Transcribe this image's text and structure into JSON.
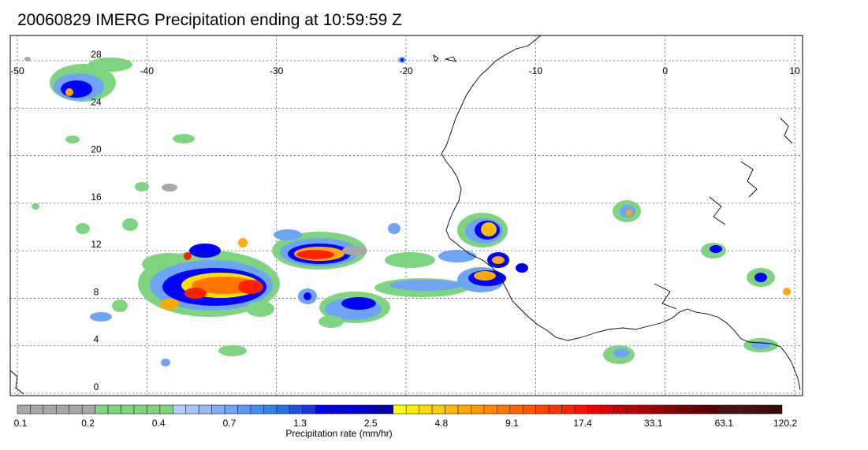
{
  "title": "20060829 IMERG Precipitation ending at 10:59:59 Z",
  "map": {
    "lon_range": [
      -50,
      10
    ],
    "lat_range": [
      -0.5,
      30
    ],
    "lon_ticks": [
      "-50",
      "-40",
      "-30",
      "-20",
      "-10",
      "0",
      "10"
    ],
    "lat_ticks": [
      "28",
      "24",
      "20",
      "16",
      "12",
      "8",
      "4",
      "0"
    ],
    "gridlines": true,
    "coastline_color": "#000000"
  },
  "colorbar": {
    "title": "Precipitation rate (mm/hr)",
    "labels": [
      "0.1",
      "0.2",
      "0.4",
      "0.7",
      "1.3",
      "2.5",
      "4.8",
      "9.1",
      "17.4",
      "33.1",
      "63.1",
      "120.2"
    ],
    "colors": [
      "#a8a8a8",
      "#a8a8a8",
      "#a8a8a8",
      "#a8a8a8",
      "#a8a8a8",
      "#a8a8a8",
      "#7fd47f",
      "#7fd47f",
      "#7fd47f",
      "#7fd47f",
      "#7fd47f",
      "#7fd47f",
      "#b8cdf5",
      "#a8c4f5",
      "#96baf5",
      "#82aff5",
      "#6ea4f5",
      "#5a98f3",
      "#478cf1",
      "#3680ee",
      "#2a6ee8",
      "#2050e0",
      "#1a38d8",
      "#0000ff",
      "#0000ef",
      "#0000df",
      "#0000cf",
      "#0000bf",
      "#0000b0",
      "#ffff00",
      "#ffee00",
      "#ffdd00",
      "#ffcc00",
      "#ffbb00",
      "#ffaa00",
      "#ff9900",
      "#ff8800",
      "#ff7700",
      "#ff6600",
      "#ff5500",
      "#ff4400",
      "#ff3300",
      "#ff2200",
      "#ff1100",
      "#ee0000",
      "#dd0000",
      "#cc0000",
      "#bb0000",
      "#aa0000",
      "#990000",
      "#880000",
      "#770000",
      "#660000",
      "#550000",
      "#4c1010",
      "#4a1414",
      "#461010",
      "#400c0c",
      "#3a0808"
    ]
  },
  "precip_color_key": {
    "trace": "#a8a8a8",
    "light": "#7fd47f",
    "moderate": "#5a98f3",
    "heavy": "#0000ff",
    "very_heavy": "#ffff00",
    "intense": "#ff9900",
    "extreme": "#ff2200",
    "max": "#990000"
  }
}
